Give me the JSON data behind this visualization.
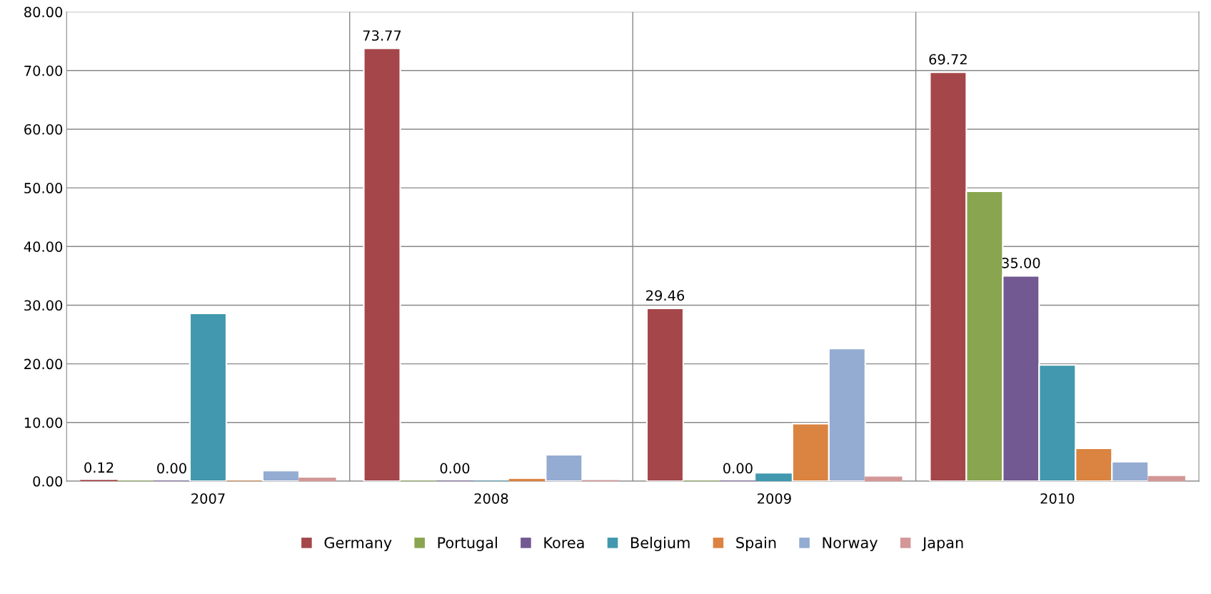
{
  "chart_data": {
    "type": "bar",
    "categories": [
      "2007",
      "2008",
      "2009",
      "2010"
    ],
    "series": [
      {
        "name": "Germany",
        "color": "#a5474a",
        "values": [
          0.12,
          73.77,
          29.46,
          69.72
        ],
        "value_labels": [
          "0.12",
          "73.77",
          "29.46",
          "69.72"
        ]
      },
      {
        "name": "Portugal",
        "color": "#8aa54f",
        "values": [
          0,
          0,
          0,
          49.4
        ]
      },
      {
        "name": "Korea",
        "color": "#725991",
        "values": [
          0,
          0,
          0,
          35.0
        ],
        "value_labels": [
          "0.00",
          "0.00",
          "0.00",
          "35.00"
        ]
      },
      {
        "name": "Belgium",
        "color": "#4298ae",
        "values": [
          28.6,
          0,
          1.2,
          19.8
        ]
      },
      {
        "name": "Spain",
        "color": "#db8340",
        "values": [
          0,
          0.3,
          9.8,
          5.6
        ]
      },
      {
        "name": "Norway",
        "color": "#94abd2",
        "values": [
          1.8,
          4.5,
          22.6,
          3.3
        ]
      },
      {
        "name": "Japan",
        "color": "#d39797",
        "values": [
          0.5,
          0.1,
          0.7,
          0.8
        ]
      }
    ],
    "ylim": [
      0,
      80
    ],
    "yticks": [
      {
        "value": 0,
        "label": "0.00"
      },
      {
        "value": 10,
        "label": "10.00"
      },
      {
        "value": 20,
        "label": "20.00"
      },
      {
        "value": 30,
        "label": "30.00"
      },
      {
        "value": 40,
        "label": "40.00"
      },
      {
        "value": 50,
        "label": "50.00"
      },
      {
        "value": 60,
        "label": "60.00"
      },
      {
        "value": 70,
        "label": "70.00"
      },
      {
        "value": 80,
        "label": "80.00"
      }
    ],
    "grid": true,
    "legend": "bottom"
  }
}
